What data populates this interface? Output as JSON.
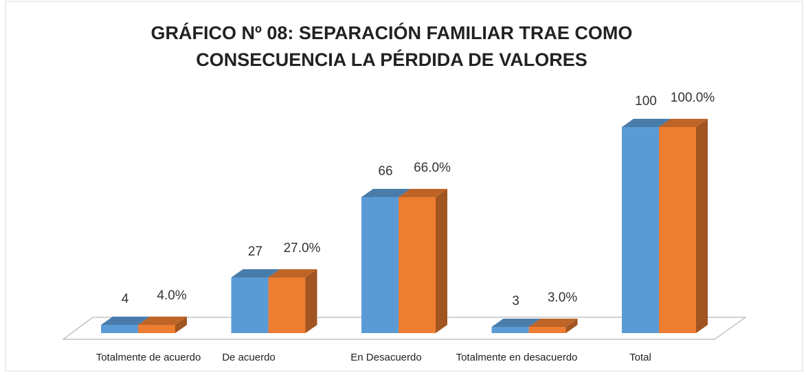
{
  "chart_data": {
    "type": "bar3d",
    "title": [
      "GRÁFICO  Nº 08: SEPARACIÓN FAMILIAR TRAE COMO",
      "CONSECUENCIA LA PÉRDIDA DE VALORES"
    ],
    "categories": [
      "Totalmente de acuerdo",
      "De acuerdo",
      "En Desacuerdo",
      "Totalmente en desacuerdo",
      "Total"
    ],
    "series": [
      {
        "color": "#5b9bd5",
        "values": [
          4,
          27,
          66,
          3,
          100
        ]
      },
      {
        "color": "#ed7d31",
        "values": [
          4,
          27,
          66,
          3,
          100
        ],
        "value_labels": [
          "4.0%",
          "27.0%",
          "66.0%",
          "3.0%",
          "100.0%"
        ]
      }
    ]
  }
}
